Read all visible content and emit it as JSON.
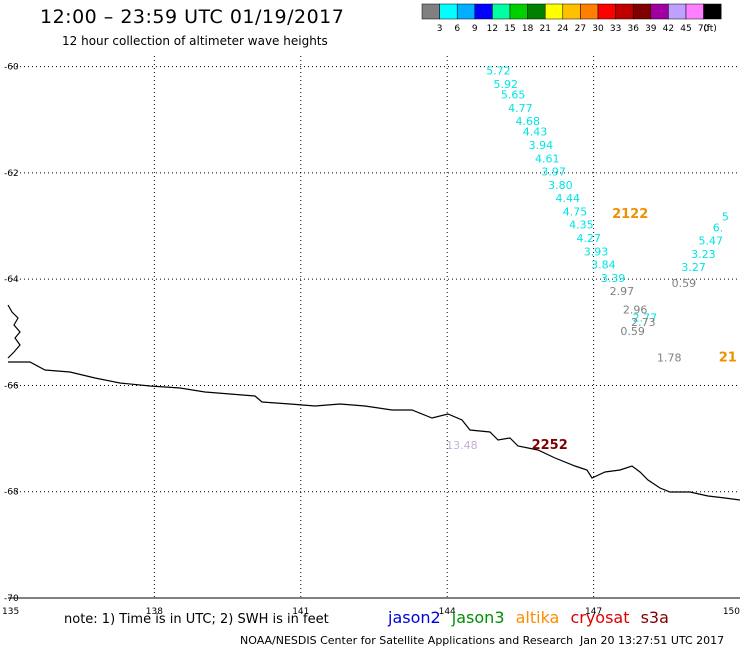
{
  "header": {
    "title": "12:00 – 23:59 UTC 01/19/2017",
    "subtitle": "12 hour collection of altimeter wave heights"
  },
  "colorbar": {
    "unit": "(ft)",
    "colors": [
      "#808080",
      "#00ffff",
      "#00b0ff",
      "#0000ff",
      "#00ffa0",
      "#00d000",
      "#008000",
      "#ffff00",
      "#ffc000",
      "#ff8000",
      "#ff0000",
      "#c00000",
      "#800000",
      "#a000a0",
      "#c0a0ff",
      "#ff80ff",
      "#000000"
    ],
    "ticks": [
      "3",
      "6",
      "9",
      "12",
      "15",
      "18",
      "21",
      "24",
      "27",
      "30",
      "33",
      "36",
      "39",
      "42",
      "45",
      "70"
    ]
  },
  "axes": {
    "x_ticks": [
      "135",
      "138",
      "141",
      "144",
      "147",
      "150"
    ],
    "y_ticks": [
      "-60",
      "-62",
      "-64",
      "-66",
      "-68",
      "-70"
    ],
    "xlim": [
      135,
      150
    ],
    "ylim": [
      -70,
      -59.8
    ]
  },
  "observations": [
    {
      "v": "5.72",
      "lon": 145.05,
      "lat": -60.15,
      "color": "#00e5e5"
    },
    {
      "v": "5.92",
      "lon": 145.2,
      "lat": -60.4,
      "color": "#00e5e5"
    },
    {
      "v": "5.65",
      "lon": 145.35,
      "lat": -60.6,
      "color": "#00e5e5"
    },
    {
      "v": "4.77",
      "lon": 145.5,
      "lat": -60.85,
      "color": "#00e5e5"
    },
    {
      "v": "4.68",
      "lon": 145.65,
      "lat": -61.1,
      "color": "#00e5e5"
    },
    {
      "v": "4.43",
      "lon": 145.8,
      "lat": -61.3,
      "color": "#00e5e5"
    },
    {
      "v": "3.94",
      "lon": 145.92,
      "lat": -61.55,
      "color": "#00e5e5"
    },
    {
      "v": "4.61",
      "lon": 146.05,
      "lat": -61.8,
      "color": "#00e5e5"
    },
    {
      "v": "3.97",
      "lon": 146.18,
      "lat": -62.05,
      "color": "#00e5e5"
    },
    {
      "v": "3.80",
      "lon": 146.32,
      "lat": -62.3,
      "color": "#00e5e5"
    },
    {
      "v": "4.44",
      "lon": 146.47,
      "lat": -62.55,
      "color": "#00e5e5"
    },
    {
      "v": "4.75",
      "lon": 146.62,
      "lat": -62.8,
      "color": "#00e5e5"
    },
    {
      "v": "4.35",
      "lon": 146.75,
      "lat": -63.05,
      "color": "#00e5e5"
    },
    {
      "v": "4.27",
      "lon": 146.9,
      "lat": -63.3,
      "color": "#00e5e5"
    },
    {
      "v": "3.93",
      "lon": 147.05,
      "lat": -63.55,
      "color": "#00e5e5"
    },
    {
      "v": "3.84",
      "lon": 147.2,
      "lat": -63.8,
      "color": "#00e5e5"
    },
    {
      "v": "3.39",
      "lon": 147.4,
      "lat": -64.05,
      "color": "#00e5e5"
    },
    {
      "v": "2.97",
      "lon": 147.58,
      "lat": -64.3,
      "color": "#808080"
    },
    {
      "v": "2.96",
      "lon": 147.85,
      "lat": -64.65,
      "color": "#808080"
    },
    {
      "v": "2.77",
      "lon": 148.05,
      "lat": -64.8,
      "color": "#00e5e5"
    },
    {
      "v": "2.73",
      "lon": 148.02,
      "lat": -64.88,
      "color": "#808080"
    },
    {
      "v": "0.59",
      "lon": 147.8,
      "lat": -65.05,
      "color": "#808080"
    },
    {
      "v": "1.78",
      "lon": 148.55,
      "lat": -65.55,
      "color": "#808080"
    },
    {
      "v": "0.59",
      "lon": 148.85,
      "lat": -64.15,
      "color": "#808080"
    },
    {
      "v": "3.27",
      "lon": 149.05,
      "lat": -63.85,
      "color": "#00e5e5"
    },
    {
      "v": "3.23",
      "lon": 149.25,
      "lat": -63.6,
      "color": "#00e5e5"
    },
    {
      "v": "5.47",
      "lon": 149.4,
      "lat": -63.35,
      "color": "#00e5e5"
    },
    {
      "v": "6.",
      "lon": 149.55,
      "lat": -63.1,
      "color": "#00e5e5"
    },
    {
      "v": "5",
      "lon": 149.7,
      "lat": -62.9,
      "color": "#00e5e5"
    },
    {
      "v": "13.48",
      "lon": 144.3,
      "lat": -67.2,
      "color": "#c0b0e0"
    }
  ],
  "pass_times": [
    {
      "v": "2122",
      "lon": 147.75,
      "lat": -62.85,
      "color": "#f09000"
    },
    {
      "v": "21",
      "lon": 149.75,
      "lat": -65.55,
      "color": "#f09000"
    },
    {
      "v": "2252",
      "lon": 146.1,
      "lat": -67.2,
      "color": "#800000"
    }
  ],
  "footer": {
    "note": "note: 1) Time is in UTC; 2) SWH is in feet",
    "legend": [
      {
        "label": "jason2",
        "color": "#0000dd"
      },
      {
        "label": "jason3",
        "color": "#009000"
      },
      {
        "label": "altika",
        "color": "#ff8c00"
      },
      {
        "label": "cryosat",
        "color": "#dd0000"
      },
      {
        "label": "s3a",
        "color": "#800000"
      }
    ],
    "credit": "NOAA/NESDIS Center for Satellite Applications and Research",
    "timestamp": "Jan 20 13:27:51 UTC 2017"
  }
}
